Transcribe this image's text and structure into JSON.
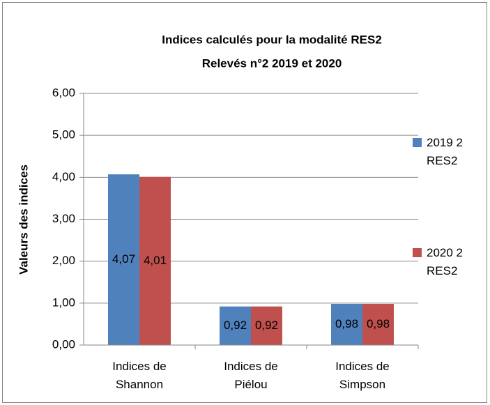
{
  "chart_data": {
    "type": "bar",
    "title": "Indices calculés pour la modalité RES2",
    "subtitle": "Relevés n°2 2019 et 2020",
    "y_label": "Valeurs des indices",
    "categories": [
      "Indices de Shannon",
      "Indices de Piélou",
      "Indices de Simpson"
    ],
    "series": [
      {
        "name": "2019 2 RES2",
        "color": "#4f81bd",
        "values": [
          4.07,
          0.92,
          0.98
        ],
        "value_labels": [
          "4,07",
          "0,92",
          "0,98"
        ]
      },
      {
        "name": "2020 2 RES2",
        "color": "#c0504d",
        "values": [
          4.01,
          0.92,
          0.98
        ],
        "value_labels": [
          "4,01",
          "0,92",
          "0,98"
        ]
      }
    ],
    "ylim": [
      0,
      6
    ],
    "yticks": [
      {
        "value": 0,
        "label": "0,00"
      },
      {
        "value": 1,
        "label": "1,00"
      },
      {
        "value": 2,
        "label": "2,00"
      },
      {
        "value": 3,
        "label": "3,00"
      },
      {
        "value": 4,
        "label": "4,00"
      },
      {
        "value": 5,
        "label": "5,00"
      },
      {
        "value": 6,
        "label": "6,00"
      }
    ],
    "grid": true,
    "legend": "right"
  }
}
